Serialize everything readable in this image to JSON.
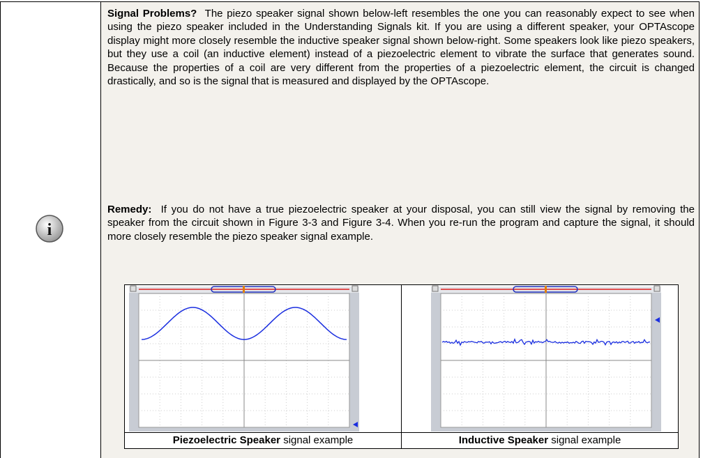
{
  "callout": {
    "paragraphs": [
      {
        "lead": "Signal Problems?",
        "text": "The piezo speaker signal shown below-left resembles the one you can reasonably expect to see when using the piezo speaker included in the Understanding Signals kit.  If you are using a different speaker, your OPTAscope display might more closely resemble the inductive speaker signal shown below-right.  Some speakers look like piezo speakers, but they use a coil (an inductive element) instead of a piezoelectric element to vibrate the surface that generates sound.  Because the properties of a coil are very different from the properties of a piezoelectric element, the circuit is changed drastically, and so is the signal that is measured and displayed by the OPTAscope."
      },
      {
        "lead": "Remedy:",
        "text": "If you do not have a true piezoelectric speaker at your disposal, you can still view the signal by removing the speaker from the circuit shown in Figure 3-3 and Figure 3-4. When you re-run the program and capture the signal, it should more closely resemble the piezo speaker signal example."
      }
    ],
    "figures": [
      {
        "caption_bold": "Piezoelectric Speaker",
        "caption_rest": "signal example"
      },
      {
        "caption_bold": "Inductive Speaker",
        "caption_rest": "signal example"
      }
    ]
  }
}
